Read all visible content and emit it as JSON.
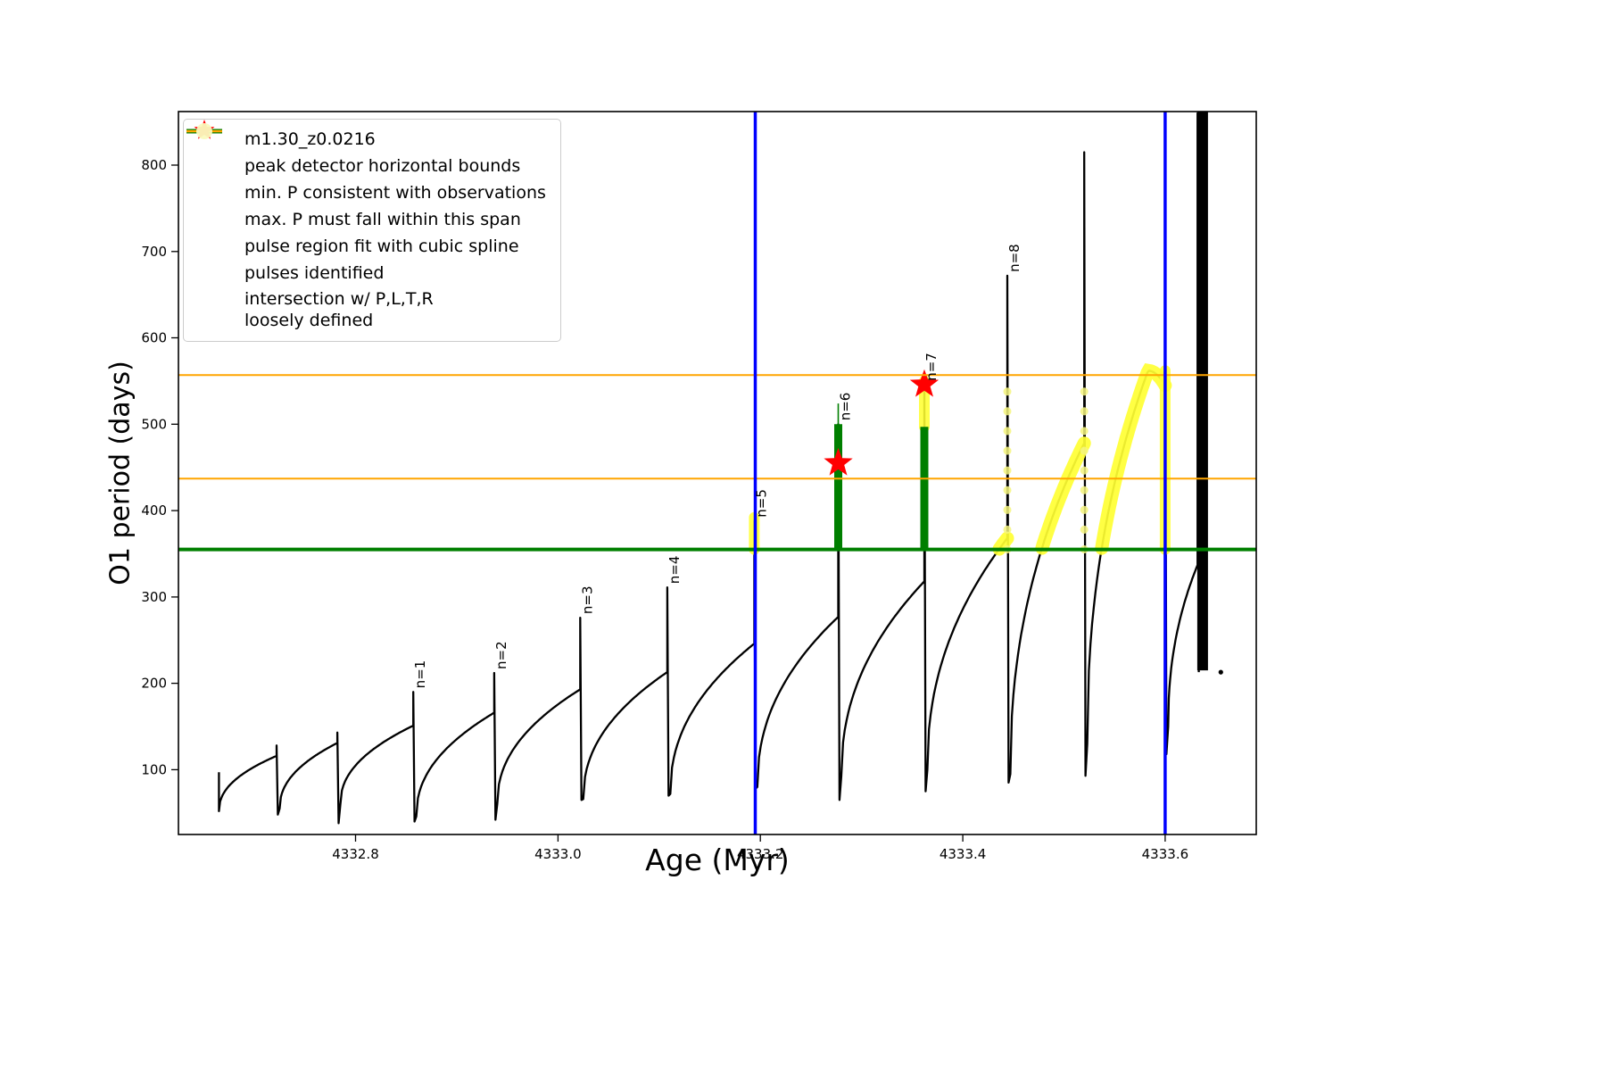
{
  "axes": {
    "xlabel": "Age (Myr)",
    "ylabel": "O1 period (days)",
    "x_range": [
      4332.625,
      4333.69
    ],
    "y_range": [
      25,
      862
    ],
    "x_tick_values": [
      4332.8,
      4333.0,
      4333.2,
      4333.4,
      4333.6
    ],
    "x_tick_labels": [
      "4332.8",
      "4333.0",
      "4333.2",
      "4333.4",
      "4333.6"
    ],
    "y_tick_values": [
      100,
      200,
      300,
      400,
      500,
      600,
      700,
      800
    ],
    "y_tick_labels": [
      "100",
      "200",
      "300",
      "400",
      "500",
      "600",
      "700",
      "800"
    ]
  },
  "legend": {
    "entries": [
      {
        "label": "m1.30_z0.0216",
        "marker": "line-dot",
        "color": "#000000"
      },
      {
        "label": "peak detector horizontal bounds",
        "marker": "thick-line",
        "color": "#0000ff"
      },
      {
        "label": "min. P consistent with observations",
        "marker": "thick-line",
        "color": "#007f00"
      },
      {
        "label": "max. P must fall within this span",
        "marker": "line",
        "color": "#ffa500"
      },
      {
        "label": "pulse region fit with cubic spline",
        "marker": "dot-small",
        "color": "#90ee90"
      },
      {
        "label": "pulses identified",
        "marker": "star",
        "color": "#ff0000"
      },
      {
        "label": "intersection w/ P,L,T,R\nloosely defined",
        "marker": "dot-large",
        "color": "#fafabe"
      }
    ]
  },
  "chart_data": {
    "type": "line",
    "series_name": "m1.30_z0.0216",
    "colors": {
      "series": "#000000",
      "peak_bounds": "#0000ff",
      "min_p": "#007f00",
      "max_p": "#ffa500",
      "spline_fit": "#007f00",
      "pulse_star": "#ff0000",
      "intersection": "#ffff33",
      "intersection_pale": "#f5f580"
    },
    "pulses": [
      {
        "x_start": 4332.665,
        "x_end": 4332.722,
        "y_min": 52,
        "y_peak": 116,
        "spike_y": 128,
        "notch_y": 48
      },
      {
        "x_start": 4332.725,
        "x_end": 4332.782,
        "y_min": 55,
        "y_peak": 131,
        "spike_y": 143,
        "notch_y": 38
      },
      {
        "x_start": 4332.785,
        "x_end": 4332.857,
        "y_min": 60,
        "y_peak": 151,
        "spike_y": 190,
        "notch_y": 40,
        "label": "n=1"
      },
      {
        "x_start": 4332.86,
        "x_end": 4332.937,
        "y_min": 46,
        "y_peak": 166,
        "spike_y": 212,
        "notch_y": 42,
        "label": "n=2"
      },
      {
        "x_start": 4332.94,
        "x_end": 4333.022,
        "y_min": 60,
        "y_peak": 193,
        "spike_y": 276,
        "notch_y": 65,
        "label": "n=3"
      },
      {
        "x_start": 4333.025,
        "x_end": 4333.108,
        "y_min": 66,
        "y_peak": 213,
        "spike_y": 311,
        "notch_y": 70,
        "label": "n=4"
      },
      {
        "x_start": 4333.111,
        "x_end": 4333.194,
        "y_min": 72,
        "y_peak": 246,
        "spike_y": 388,
        "notch_y": 78,
        "label": "n=5"
      },
      {
        "x_start": 4333.197,
        "x_end": 4333.277,
        "y_min": 80,
        "y_peak": 277,
        "spike_y": 500,
        "notch_y": 65,
        "label": "n=6"
      },
      {
        "x_start": 4333.28,
        "x_end": 4333.362,
        "y_min": 92,
        "y_peak": 318,
        "spike_y": 546,
        "notch_y": 75,
        "label": "n=7"
      },
      {
        "x_start": 4333.365,
        "x_end": 4333.444,
        "y_min": 100,
        "y_peak": 368,
        "spike_y": 672,
        "notch_y": 85,
        "label": "n=8"
      },
      {
        "x_start": 4333.447,
        "x_end": 4333.52,
        "y_min": 95,
        "y_peak": 478,
        "spike_y": 815,
        "notch_y": 93
      },
      {
        "x_start": 4333.523,
        "x_end": 4333.6,
        "y_min": 130,
        "y_peak": 562,
        "y_end": 545,
        "spike_y": 685,
        "notch_y": 118
      },
      {
        "x_start": 4333.603,
        "x_end": 4333.632,
        "y_min": 150,
        "y_peak": 337,
        "spike_y": 860,
        "notch_y": 213
      }
    ],
    "hlines": [
      {
        "y": 355,
        "color": "#007f00",
        "width": 4
      },
      {
        "y": 437,
        "color": "#ffa500",
        "width": 2
      },
      {
        "y": 557,
        "color": "#ffa500",
        "width": 2
      }
    ],
    "vlines": [
      {
        "x": 4333.195,
        "color": "#0000ff",
        "width": 3.5
      },
      {
        "x": 4333.6,
        "color": "#0000ff",
        "width": 3.5
      }
    ],
    "yellow_threshold": 355,
    "yellow_columns": [
      {
        "x": 4333.194,
        "y0": 355,
        "y1": 392,
        "style": "solid"
      },
      {
        "x": 4333.362,
        "y0": 497,
        "y1": 550,
        "style": "solid"
      },
      {
        "x": 4333.444,
        "y0": 355,
        "y1": 556,
        "style": "dots"
      },
      {
        "x": 4333.52,
        "y0": 355,
        "y1": 548,
        "style": "dots"
      },
      {
        "x": 4333.6,
        "y0": 355,
        "y1": 562,
        "style": "solid"
      }
    ],
    "green_columns": [
      {
        "x": 4333.277,
        "y0": 355,
        "y1": 500
      },
      {
        "x": 4333.362,
        "y0": 355,
        "y1": 497
      }
    ],
    "green_spike": {
      "x": 4333.277,
      "y0": 500,
      "y1": 524
    },
    "stars": [
      {
        "x": 4333.277,
        "y": 455
      },
      {
        "x": 4333.362,
        "y": 546
      }
    ],
    "black_bar": {
      "x": 4333.637,
      "y0": 215,
      "y1": 862
    },
    "tail_point": {
      "x": 4333.655,
      "y": 213
    }
  }
}
